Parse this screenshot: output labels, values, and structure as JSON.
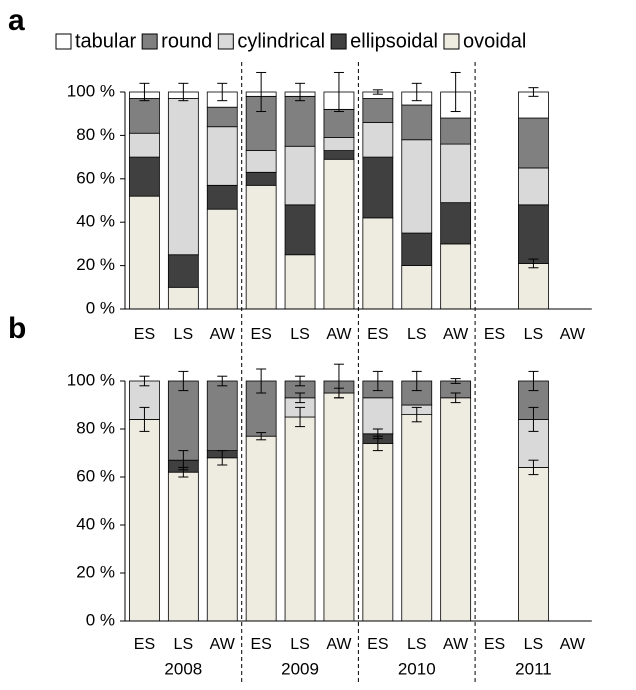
{
  "chart_data": [
    {
      "type": "bar",
      "stacked": true,
      "panel_label": "a",
      "categories": [
        "ES",
        "LS",
        "AW",
        "ES",
        "LS",
        "AW",
        "ES",
        "LS",
        "AW",
        "ES",
        "LS",
        "AW"
      ],
      "ylim": [
        0,
        100
      ],
      "yticks": [
        {
          "value": 0,
          "label": "0 %"
        },
        {
          "value": 20,
          "label": "20 %"
        },
        {
          "value": 40,
          "label": "40 %"
        },
        {
          "value": 60,
          "label": "60 %"
        },
        {
          "value": 80,
          "label": "80 %"
        },
        {
          "value": 100,
          "label": "100 %"
        }
      ],
      "series": [
        {
          "name": "ovoidal",
          "color": "#eeece1",
          "values": [
            52,
            10,
            46,
            57,
            25,
            69,
            42,
            20,
            30,
            null,
            21,
            null
          ],
          "errors": [
            null,
            null,
            null,
            null,
            null,
            null,
            null,
            null,
            null,
            null,
            2,
            null
          ]
        },
        {
          "name": "ellipsoidal",
          "color": "#404040",
          "values": [
            18,
            15,
            11,
            6,
            23,
            4,
            28,
            15,
            19,
            null,
            27,
            null
          ],
          "errors": [
            null,
            null,
            null,
            null,
            null,
            null,
            null,
            null,
            null,
            null,
            null,
            null
          ]
        },
        {
          "name": "cylindrical",
          "color": "#d9d9d9",
          "values": [
            11,
            72,
            27,
            10,
            27,
            6,
            16,
            43,
            27,
            null,
            17,
            null
          ],
          "errors": [
            null,
            null,
            null,
            null,
            null,
            null,
            null,
            null,
            null,
            null,
            null,
            null
          ]
        },
        {
          "name": "round",
          "color": "#808080",
          "values": [
            16,
            0,
            9,
            25,
            23,
            13,
            11,
            16,
            12,
            null,
            23,
            null
          ],
          "errors": [
            null,
            null,
            null,
            null,
            null,
            null,
            null,
            null,
            null,
            null,
            null,
            null
          ]
        },
        {
          "name": "tabular",
          "color": "#ffffff",
          "values": [
            3,
            3,
            7,
            2,
            2,
            8,
            3,
            6,
            12,
            null,
            12,
            null
          ],
          "errors": [
            4,
            4,
            4,
            9,
            4,
            9,
            1,
            4,
            9,
            null,
            2,
            null
          ]
        }
      ]
    },
    {
      "type": "bar",
      "stacked": true,
      "panel_label": "b",
      "categories": [
        "ES",
        "LS",
        "AW",
        "ES",
        "LS",
        "AW",
        "ES",
        "LS",
        "AW",
        "ES",
        "LS",
        "AW"
      ],
      "group_labels": [
        "2008",
        "2009",
        "2010",
        "2011"
      ],
      "ylim": [
        0,
        100
      ],
      "yticks": [
        {
          "value": 0,
          "label": "0 %"
        },
        {
          "value": 20,
          "label": "20 %"
        },
        {
          "value": 40,
          "label": "40 %"
        },
        {
          "value": 60,
          "label": "60 %"
        },
        {
          "value": 80,
          "label": "80 %"
        },
        {
          "value": 100,
          "label": "100 %"
        }
      ],
      "series": [
        {
          "color": "#eeece1",
          "values": [
            84,
            62,
            68,
            77,
            85,
            95,
            74,
            86,
            93,
            null,
            64,
            null
          ],
          "errors": [
            5,
            2,
            3,
            1.5,
            4,
            2,
            3,
            3,
            2,
            null,
            3,
            null
          ]
        },
        {
          "color": "#404040",
          "values": [
            0,
            5,
            3,
            0,
            0,
            0,
            4,
            0,
            0,
            null,
            0,
            null
          ],
          "errors": [
            null,
            4,
            null,
            null,
            null,
            null,
            2,
            null,
            null,
            null,
            null,
            null
          ]
        },
        {
          "color": "#d9d9d9",
          "values": [
            16,
            0,
            0,
            0,
            8,
            0,
            15,
            4,
            0,
            null,
            20,
            null
          ],
          "errors": [
            null,
            null,
            null,
            null,
            2,
            null,
            null,
            null,
            null,
            null,
            5,
            null
          ]
        },
        {
          "color": "#808080",
          "values": [
            0,
            33,
            29,
            23,
            7,
            5,
            7,
            10,
            7,
            null,
            16,
            null
          ],
          "errors": [
            2,
            4,
            2,
            5,
            2,
            7,
            4,
            4,
            1,
            null,
            4,
            null
          ]
        },
        {
          "color": "#ffffff",
          "values": [
            0,
            0,
            0,
            0,
            0,
            0,
            0,
            0,
            0,
            null,
            0,
            null
          ],
          "errors": [
            null,
            null,
            null,
            null,
            null,
            null,
            null,
            null,
            null,
            null,
            null,
            null
          ]
        }
      ]
    }
  ]
}
